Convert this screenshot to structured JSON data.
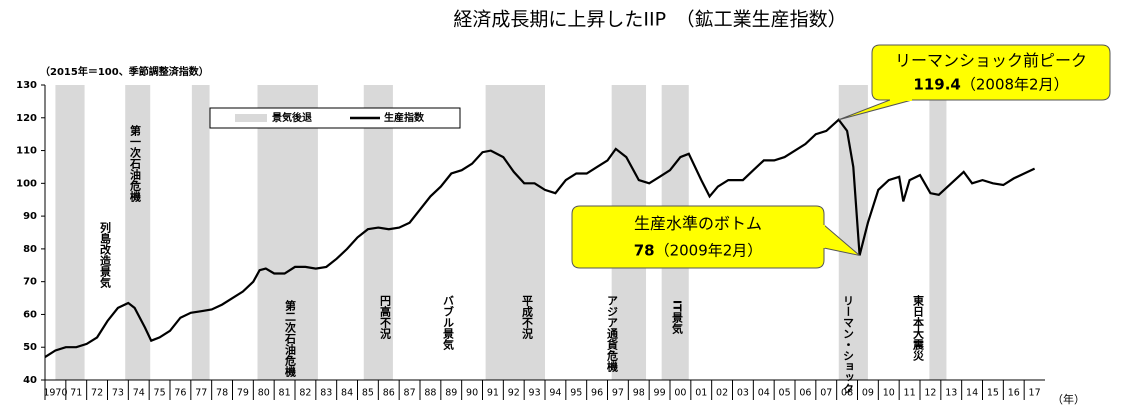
{
  "chart_data": {
    "type": "line",
    "title": "経済成長期に上昇したIIP　（鉱工業生産指数）",
    "subtitle": "（2015年＝100、季節調整済指数）",
    "x_axis_label": "（年）",
    "xlim": [
      1970,
      2018
    ],
    "xticks": [
      {
        "value": 1970,
        "label": "1970"
      },
      {
        "value": 1971,
        "label": "71"
      },
      {
        "value": 1972,
        "label": "72"
      },
      {
        "value": 1973,
        "label": "73"
      },
      {
        "value": 1974,
        "label": "74"
      },
      {
        "value": 1975,
        "label": "75"
      },
      {
        "value": 1976,
        "label": "76"
      },
      {
        "value": 1977,
        "label": "77"
      },
      {
        "value": 1978,
        "label": "78"
      },
      {
        "value": 1979,
        "label": "79"
      },
      {
        "value": 1980,
        "label": "80"
      },
      {
        "value": 1981,
        "label": "81"
      },
      {
        "value": 1982,
        "label": "82"
      },
      {
        "value": 1983,
        "label": "83"
      },
      {
        "value": 1984,
        "label": "84"
      },
      {
        "value": 1985,
        "label": "85"
      },
      {
        "value": 1986,
        "label": "86"
      },
      {
        "value": 1987,
        "label": "87"
      },
      {
        "value": 1988,
        "label": "88"
      },
      {
        "value": 1989,
        "label": "89"
      },
      {
        "value": 1990,
        "label": "90"
      },
      {
        "value": 1991,
        "label": "91"
      },
      {
        "value": 1992,
        "label": "92"
      },
      {
        "value": 1993,
        "label": "93"
      },
      {
        "value": 1994,
        "label": "94"
      },
      {
        "value": 1995,
        "label": "95"
      },
      {
        "value": 1996,
        "label": "96"
      },
      {
        "value": 1997,
        "label": "97"
      },
      {
        "value": 1998,
        "label": "98"
      },
      {
        "value": 1999,
        "label": "99"
      },
      {
        "value": 2000,
        "label": "00"
      },
      {
        "value": 2001,
        "label": "01"
      },
      {
        "value": 2002,
        "label": "02"
      },
      {
        "value": 2003,
        "label": "03"
      },
      {
        "value": 2004,
        "label": "04"
      },
      {
        "value": 2005,
        "label": "05"
      },
      {
        "value": 2006,
        "label": "06"
      },
      {
        "value": 2007,
        "label": "07"
      },
      {
        "value": 2008,
        "label": "08"
      },
      {
        "value": 2009,
        "label": "09"
      },
      {
        "value": 2010,
        "label": "10"
      },
      {
        "value": 2011,
        "label": "11"
      },
      {
        "value": 2012,
        "label": "12"
      },
      {
        "value": 2013,
        "label": "13"
      },
      {
        "value": 2014,
        "label": "14"
      },
      {
        "value": 2015,
        "label": "15"
      },
      {
        "value": 2016,
        "label": "16"
      },
      {
        "value": 2017,
        "label": "17"
      }
    ],
    "ylim": [
      40,
      130
    ],
    "yticks": [
      40,
      50,
      60,
      70,
      80,
      90,
      100,
      110,
      120,
      130
    ],
    "x": [
      1970.0,
      1970.5,
      1971.0,
      1971.5,
      1972.0,
      1972.5,
      1973.0,
      1973.5,
      1974.0,
      1974.3,
      1974.8,
      1975.1,
      1975.5,
      1976.0,
      1976.5,
      1977.0,
      1977.5,
      1978.0,
      1978.5,
      1979.0,
      1979.5,
      1980.0,
      1980.3,
      1980.6,
      1981.0,
      1981.5,
      1982.0,
      1982.5,
      1983.0,
      1983.5,
      1984.0,
      1984.5,
      1985.0,
      1985.5,
      1986.0,
      1986.5,
      1987.0,
      1987.5,
      1988.0,
      1988.5,
      1989.0,
      1989.5,
      1990.0,
      1990.5,
      1991.0,
      1991.4,
      1992.0,
      1992.5,
      1993.0,
      1993.5,
      1994.0,
      1994.5,
      1995.0,
      1995.5,
      1996.0,
      1996.5,
      1997.0,
      1997.4,
      1997.9,
      1998.5,
      1999.0,
      1999.5,
      2000.0,
      2000.5,
      2000.9,
      2001.5,
      2001.9,
      2002.3,
      2002.8,
      2003.5,
      2004.0,
      2004.5,
      2005.0,
      2005.5,
      2006.0,
      2006.5,
      2007.0,
      2007.5,
      2008.1,
      2008.5,
      2008.8,
      2009.1,
      2009.5,
      2010.0,
      2010.5,
      2011.0,
      2011.2,
      2011.5,
      2012.0,
      2012.5,
      2012.9,
      2013.5,
      2014.1,
      2014.5,
      2015.0,
      2015.5,
      2016.0,
      2016.5,
      2017.0,
      2017.5
    ],
    "series": [
      {
        "name": "生産指数",
        "color": "#000000",
        "values": [
          47,
          49,
          50,
          50,
          51,
          53,
          58,
          62,
          63.5,
          62,
          56,
          52,
          53,
          55,
          59,
          60.5,
          61,
          61.5,
          63,
          65,
          67,
          70,
          73.5,
          74,
          72.5,
          72.5,
          74.5,
          74.5,
          74,
          74.5,
          77,
          80,
          83.5,
          86,
          86.5,
          86,
          86.5,
          88,
          92,
          96,
          99,
          103,
          104,
          106,
          109.5,
          110,
          108,
          103.5,
          100,
          100,
          98,
          97,
          101,
          103,
          103,
          105,
          107,
          110.5,
          108,
          101,
          100,
          102,
          104,
          108,
          109,
          101,
          96,
          99,
          101,
          101,
          104,
          107,
          107,
          108,
          110,
          112,
          115,
          116,
          119.4,
          116,
          105,
          78.0,
          88,
          98,
          101,
          102,
          94.5,
          101,
          102.5,
          97,
          96.5,
          100,
          103.5,
          100,
          101,
          100,
          99.5,
          101.5,
          103,
          104.5
        ]
      }
    ],
    "recession_label": "景気後退",
    "recession_color": "#d9d9d9",
    "recessions": [
      [
        1970.5,
        1971.9
      ],
      [
        1973.85,
        1975.05
      ],
      [
        1977.05,
        1977.9
      ],
      [
        1980.2,
        1983.1
      ],
      [
        1985.3,
        1986.7
      ],
      [
        1991.15,
        1994.0
      ],
      [
        1997.2,
        1998.85
      ],
      [
        1999.6,
        2000.9
      ],
      [
        2008.1,
        2009.5
      ],
      [
        2012.45,
        2013.27
      ]
    ],
    "period_labels": [
      "列島改造景気",
      "第一次石油危機",
      "第二次石油危機",
      "円高不況",
      "バブル景気",
      "平成不況",
      "アジア通貨危機",
      "IT景気",
      "リーマン・ショック",
      "東日本大震災"
    ],
    "callouts": [
      {
        "text": "リーマンショック前ピーク",
        "value": 119.4,
        "date": "（2008年2月）"
      },
      {
        "text": "生産水準のボトム",
        "value": 78.0,
        "date": "（2009年2月）"
      }
    ],
    "callout_color": "#ffff00"
  }
}
